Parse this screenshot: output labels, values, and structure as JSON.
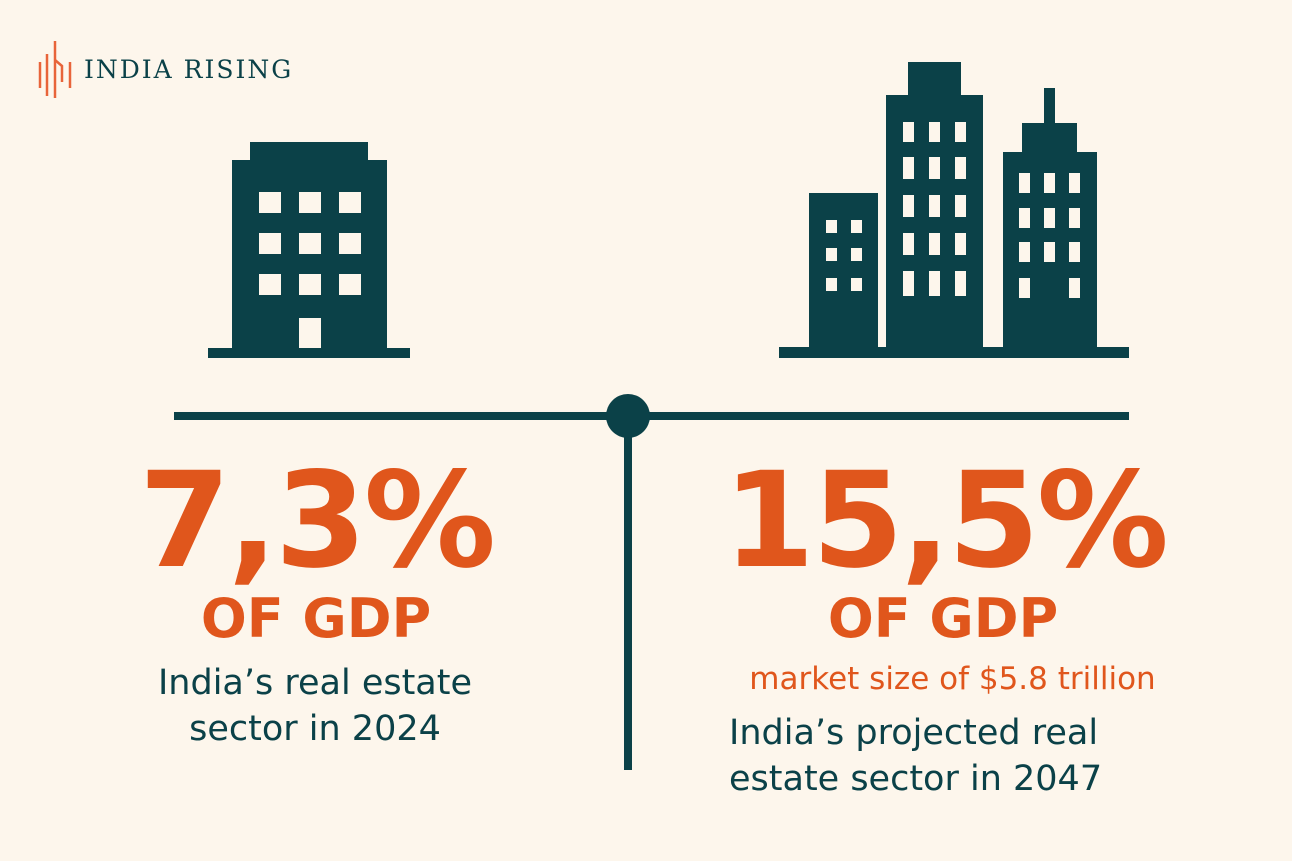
{
  "logo": {
    "text": "INDIA RISING"
  },
  "colors": {
    "background": "#fdf6ec",
    "primary": "#0b4148",
    "accent": "#e0561c"
  },
  "left": {
    "value": "7,3%",
    "unit": "OF GDP",
    "description_line1": "India’s real estate",
    "description_line2": "sector in 2024",
    "icon": "single-building-icon"
  },
  "right": {
    "value": "15,5%",
    "unit": "OF GDP",
    "subtext": "market size of $5.8 trillion",
    "description_line1": "India’s projected real",
    "description_line2": "estate sector in 2047",
    "icon": "skyline-buildings-icon"
  }
}
